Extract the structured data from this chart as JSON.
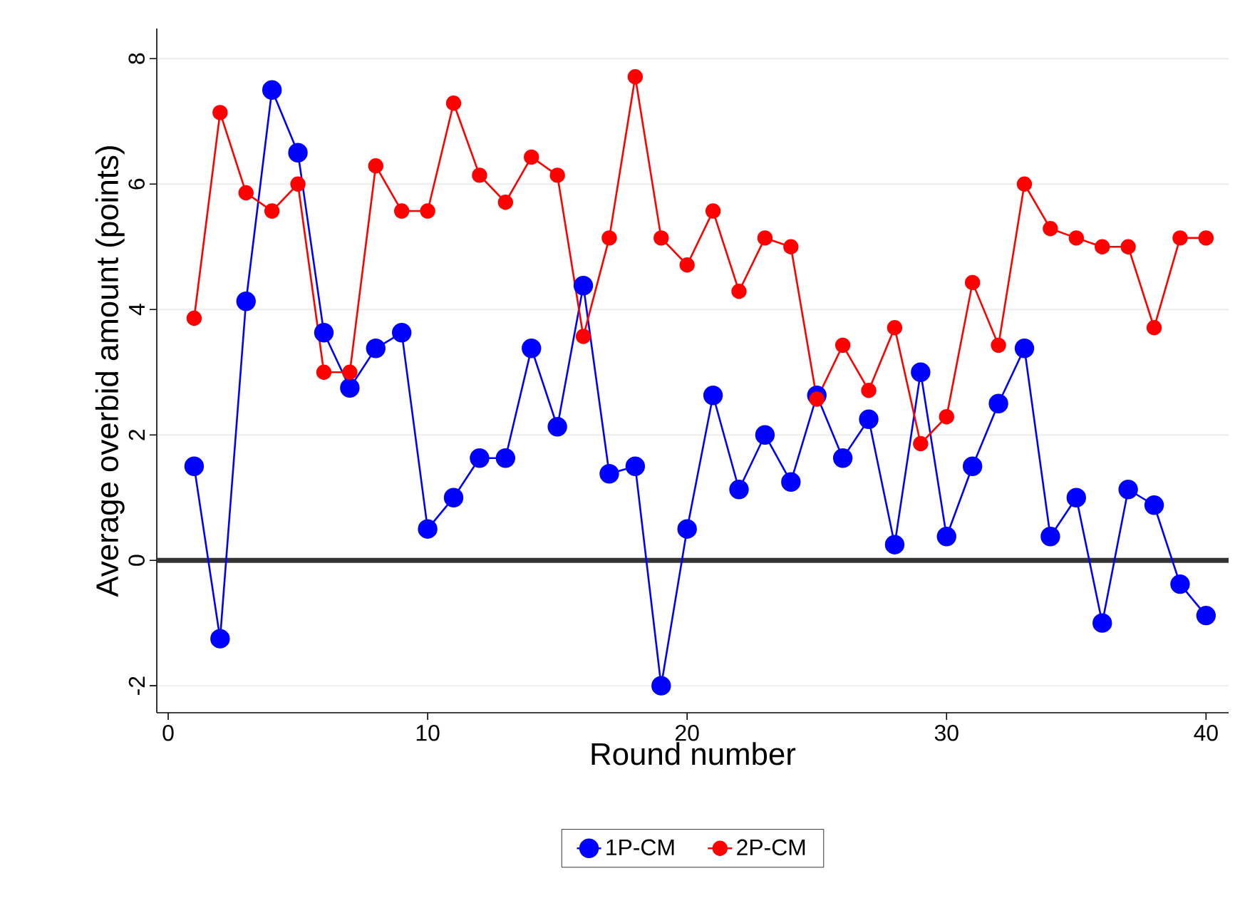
{
  "chart_data": {
    "type": "line",
    "xlabel": "Round number",
    "ylabel": "Average overbid amount (points)",
    "x": [
      1,
      2,
      3,
      4,
      5,
      6,
      7,
      8,
      9,
      10,
      11,
      12,
      13,
      14,
      15,
      16,
      17,
      18,
      19,
      20,
      21,
      22,
      23,
      24,
      25,
      26,
      27,
      28,
      29,
      30,
      31,
      32,
      33,
      34,
      35,
      36,
      37,
      38,
      39,
      40
    ],
    "series": [
      {
        "name": "1P-CM",
        "color": "#0000ff",
        "values": [
          1.5,
          -1.25,
          4.13,
          7.5,
          6.5,
          3.63,
          2.75,
          3.38,
          3.63,
          0.5,
          1.0,
          1.63,
          1.63,
          3.38,
          2.13,
          4.38,
          1.38,
          1.5,
          -2.0,
          0.5,
          2.63,
          1.13,
          2.0,
          1.25,
          2.63,
          1.63,
          2.25,
          0.25,
          3.0,
          0.38,
          1.5,
          2.5,
          3.38,
          0.38,
          1.0,
          -1.0,
          1.13,
          0.88,
          -0.38,
          -0.88
        ]
      },
      {
        "name": "2P-CM",
        "color": "#ff0000",
        "values": [
          3.86,
          7.14,
          5.86,
          5.57,
          6.0,
          3.0,
          3.0,
          6.29,
          5.57,
          5.57,
          7.29,
          6.14,
          5.71,
          6.43,
          6.14,
          3.57,
          5.14,
          7.71,
          5.14,
          4.71,
          5.57,
          4.29,
          5.14,
          5.0,
          2.57,
          3.43,
          2.71,
          3.71,
          1.86,
          2.29,
          4.43,
          3.43,
          6.0,
          5.29,
          5.14,
          5.0,
          5.0,
          3.71,
          5.14,
          5.14
        ]
      }
    ],
    "xlim": [
      -0.44,
      40.87
    ],
    "ylim": [
      -2.43,
      8.48
    ],
    "xticks": [
      0,
      10,
      20,
      30,
      40
    ],
    "yticks": [
      -2,
      0,
      2,
      4,
      6,
      8
    ],
    "ref_lines": [
      {
        "axis": "y",
        "value": 0,
        "color": "#333333"
      }
    ],
    "grid": "y",
    "legend": "bottom",
    "marker": "circle",
    "line_style": "solid"
  }
}
